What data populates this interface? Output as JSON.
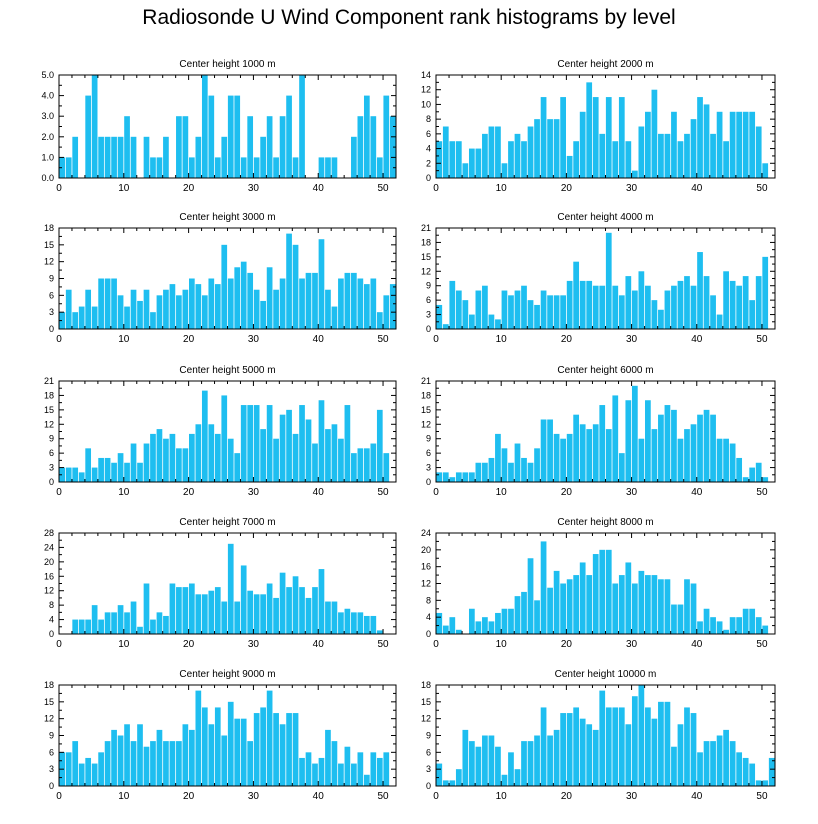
{
  "title": "Radiosonde U Wind Component rank histograms by level",
  "colors": {
    "bar": "#1EBEF0",
    "axis": "#000000",
    "background": "#ffffff"
  },
  "chart_data": [
    {
      "type": "bar",
      "title": "Center height 1000 m",
      "xlim": [
        0,
        52
      ],
      "ylim": [
        0,
        5
      ],
      "yticks": [
        0,
        1,
        2,
        3,
        4,
        5
      ],
      "ytick_labels": [
        "0.0",
        "1.0",
        "2.0",
        "3.0",
        "4.0",
        "5.0"
      ],
      "xticks": [
        0,
        10,
        20,
        30,
        40,
        50
      ],
      "values": [
        1,
        1,
        2,
        0,
        4,
        5,
        2,
        2,
        2,
        2,
        3,
        2,
        0,
        2,
        1,
        1,
        2,
        0,
        3,
        3,
        1,
        2,
        5,
        4,
        1,
        2,
        4,
        4,
        1,
        3,
        1,
        2,
        3,
        1,
        3,
        4,
        1,
        5,
        0,
        0,
        1,
        1,
        1,
        0,
        0,
        2,
        3,
        4,
        3,
        1,
        4,
        3
      ]
    },
    {
      "type": "bar",
      "title": "Center height 2000 m",
      "xlim": [
        0,
        52
      ],
      "ylim": [
        0,
        14
      ],
      "yticks": [
        0,
        2,
        4,
        6,
        8,
        10,
        12,
        14
      ],
      "ytick_labels": [
        "0",
        "2",
        "4",
        "6",
        "8",
        "10",
        "12",
        "14"
      ],
      "xticks": [
        0,
        10,
        20,
        30,
        40,
        50
      ],
      "values": [
        5,
        7,
        5,
        5,
        2,
        4,
        4,
        6,
        7,
        7,
        2,
        5,
        6,
        5,
        7,
        8,
        11,
        8,
        8,
        11,
        3,
        5,
        9,
        13,
        11,
        6,
        11,
        5,
        11,
        5,
        1,
        7,
        9,
        12,
        6,
        6,
        9,
        5,
        6,
        8,
        11,
        10,
        6,
        9,
        5,
        9,
        9,
        9,
        9,
        7,
        2
      ]
    },
    {
      "type": "bar",
      "title": "Center height 3000 m",
      "xlim": [
        0,
        52
      ],
      "ylim": [
        0,
        18
      ],
      "yticks": [
        0,
        3,
        6,
        9,
        12,
        15,
        18
      ],
      "ytick_labels": [
        "0",
        "3",
        "6",
        "9",
        "12",
        "15",
        "18"
      ],
      "xticks": [
        0,
        10,
        20,
        30,
        40,
        50
      ],
      "values": [
        3,
        7,
        3,
        4,
        7,
        4,
        9,
        9,
        9,
        6,
        4,
        7,
        5,
        7,
        3,
        6,
        7,
        8,
        6,
        7,
        9,
        8,
        6,
        9,
        8,
        15,
        9,
        11,
        12,
        10,
        7,
        5,
        11,
        7,
        9,
        17,
        15,
        9,
        10,
        10,
        16,
        7,
        4,
        9,
        10,
        10,
        9,
        8,
        9,
        3,
        6,
        8
      ]
    },
    {
      "type": "bar",
      "title": "Center height 4000 m",
      "xlim": [
        0,
        52
      ],
      "ylim": [
        0,
        21
      ],
      "yticks": [
        0,
        3,
        6,
        9,
        12,
        15,
        18,
        21
      ],
      "ytick_labels": [
        "0",
        "3",
        "6",
        "9",
        "12",
        "15",
        "18",
        "21"
      ],
      "xticks": [
        0,
        10,
        20,
        30,
        40,
        50
      ],
      "values": [
        5,
        1,
        10,
        8,
        6,
        3,
        8,
        9,
        3,
        2,
        8,
        7,
        8,
        9,
        6,
        5,
        8,
        7,
        7,
        7,
        10,
        14,
        10,
        10,
        9,
        9,
        20,
        9,
        7,
        11,
        8,
        12,
        9,
        6,
        4,
        8,
        9,
        10,
        11,
        9,
        16,
        11,
        7,
        3,
        12,
        10,
        9,
        11,
        6,
        11,
        15
      ]
    },
    {
      "type": "bar",
      "title": "Center height 5000 m",
      "xlim": [
        0,
        52
      ],
      "ylim": [
        0,
        21
      ],
      "yticks": [
        0,
        3,
        6,
        9,
        12,
        15,
        18,
        21
      ],
      "ytick_labels": [
        "0",
        "3",
        "6",
        "9",
        "12",
        "15",
        "18",
        "21"
      ],
      "xticks": [
        0,
        10,
        20,
        30,
        40,
        50
      ],
      "values": [
        3,
        3,
        3,
        2,
        7,
        3,
        5,
        5,
        4,
        6,
        4,
        8,
        4,
        8,
        10,
        11,
        9,
        10,
        7,
        7,
        10,
        12,
        19,
        12,
        10,
        18,
        9,
        6,
        16,
        16,
        16,
        11,
        16,
        9,
        14,
        15,
        10,
        16,
        13,
        8,
        17,
        11,
        12,
        9,
        16,
        6,
        7,
        7,
        8,
        15,
        6
      ]
    },
    {
      "type": "bar",
      "title": "Center height 6000 m",
      "xlim": [
        0,
        52
      ],
      "ylim": [
        0,
        21
      ],
      "yticks": [
        0,
        3,
        6,
        9,
        12,
        15,
        18,
        21
      ],
      "ytick_labels": [
        "0",
        "3",
        "6",
        "9",
        "12",
        "15",
        "18",
        "21"
      ],
      "xticks": [
        0,
        10,
        20,
        30,
        40,
        50
      ],
      "values": [
        2,
        2,
        1,
        2,
        2,
        2,
        4,
        4,
        5,
        10,
        7,
        4,
        8,
        5,
        4,
        7,
        13,
        13,
        10,
        9,
        10,
        14,
        12,
        11,
        12,
        16,
        11,
        18,
        6,
        17,
        20,
        9,
        17,
        11,
        14,
        16,
        15,
        9,
        11,
        12,
        14,
        15,
        14,
        9,
        9,
        8,
        5,
        1,
        3,
        4,
        1
      ]
    },
    {
      "type": "bar",
      "title": "Center height 7000 m",
      "xlim": [
        0,
        52
      ],
      "ylim": [
        0,
        28
      ],
      "yticks": [
        0,
        4,
        8,
        12,
        16,
        20,
        24,
        28
      ],
      "ytick_labels": [
        "0",
        "4",
        "8",
        "12",
        "16",
        "20",
        "24",
        "28"
      ],
      "xticks": [
        0,
        10,
        20,
        30,
        40,
        50
      ],
      "values": [
        0,
        0,
        4,
        4,
        4,
        8,
        4,
        6,
        6,
        8,
        6,
        9,
        2,
        14,
        4,
        6,
        5,
        14,
        13,
        13,
        14,
        11,
        11,
        12,
        13,
        9,
        25,
        9,
        19,
        12,
        11,
        11,
        14,
        10,
        17,
        13,
        16,
        13,
        10,
        13,
        18,
        9,
        9,
        6,
        7,
        6,
        6,
        5,
        5,
        1
      ]
    },
    {
      "type": "bar",
      "title": "Center height 8000 m",
      "xlim": [
        0,
        52
      ],
      "ylim": [
        0,
        24
      ],
      "yticks": [
        0,
        4,
        8,
        12,
        16,
        20,
        24
      ],
      "ytick_labels": [
        "0",
        "4",
        "8",
        "12",
        "16",
        "20",
        "24"
      ],
      "xticks": [
        0,
        10,
        20,
        30,
        40,
        50
      ],
      "values": [
        5,
        2,
        4,
        1,
        0,
        6,
        3,
        4,
        3,
        5,
        6,
        6,
        9,
        10,
        18,
        8,
        22,
        11,
        15,
        12,
        13,
        14,
        17,
        14,
        19,
        20,
        20,
        12,
        14,
        17,
        12,
        15,
        14,
        14,
        13,
        13,
        7,
        7,
        13,
        12,
        3,
        6,
        4,
        3,
        1,
        4,
        4,
        6,
        6,
        4,
        2
      ]
    },
    {
      "type": "bar",
      "title": "Center height 9000 m",
      "xlim": [
        0,
        52
      ],
      "ylim": [
        0,
        18
      ],
      "yticks": [
        0,
        3,
        6,
        9,
        12,
        15,
        18
      ],
      "ytick_labels": [
        "0",
        "3",
        "6",
        "9",
        "12",
        "15",
        "18"
      ],
      "xticks": [
        0,
        10,
        20,
        30,
        40,
        50
      ],
      "values": [
        6,
        6,
        8,
        4,
        5,
        4,
        6,
        8,
        10,
        9,
        11,
        8,
        11,
        7,
        8,
        10,
        8,
        8,
        8,
        11,
        10,
        17,
        14,
        11,
        14,
        9,
        15,
        12,
        12,
        8,
        13,
        14,
        17,
        13,
        11,
        13,
        13,
        5,
        6,
        4,
        5,
        10,
        8,
        4,
        7,
        4,
        6,
        2,
        6,
        5,
        6
      ]
    },
    {
      "type": "bar",
      "title": "Center height 10000 m",
      "xlim": [
        0,
        52
      ],
      "ylim": [
        0,
        18
      ],
      "yticks": [
        0,
        3,
        6,
        9,
        12,
        15,
        18
      ],
      "ytick_labels": [
        "0",
        "3",
        "6",
        "9",
        "12",
        "15",
        "18"
      ],
      "xticks": [
        0,
        10,
        20,
        30,
        40,
        50
      ],
      "values": [
        4,
        1,
        1,
        3,
        10,
        8,
        7,
        9,
        9,
        7,
        2,
        6,
        3,
        8,
        8,
        9,
        14,
        9,
        10,
        13,
        13,
        14,
        12,
        11,
        10,
        17,
        14,
        14,
        14,
        11,
        16,
        18,
        14,
        12,
        15,
        15,
        7,
        11,
        14,
        13,
        6,
        8,
        8,
        9,
        10,
        8,
        6,
        5,
        4,
        1,
        1,
        5
      ]
    }
  ]
}
